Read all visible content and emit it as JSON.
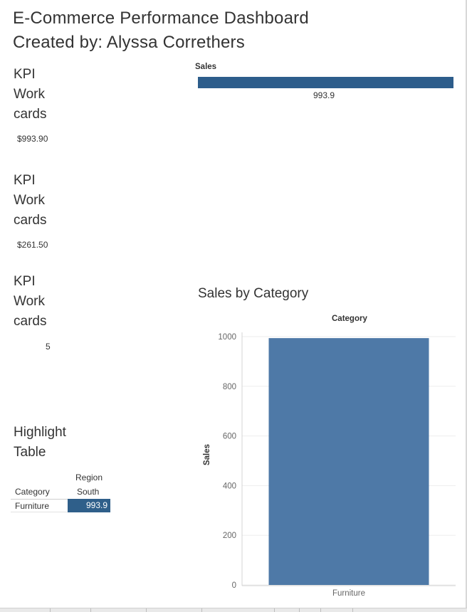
{
  "dashboard": {
    "title": "E-Commerce Performance Dashboard",
    "subtitle": "Created by: Alyssa Correthers"
  },
  "kpis": [
    {
      "title": [
        "KPI",
        "Work",
        "cards"
      ],
      "value": "$993.90"
    },
    {
      "title": [
        "KPI",
        "Work",
        "cards"
      ],
      "value": "$261.50"
    },
    {
      "title": [
        "KPI",
        "Work",
        "cards"
      ],
      "value": "5"
    }
  ],
  "highlight_table": {
    "title": [
      "Highlight",
      "Table"
    ],
    "column_group_header": "Region",
    "column_header": "South",
    "row_header": "Category",
    "rows": [
      {
        "label": "Furniture",
        "value": "993.9"
      }
    ],
    "colors": {
      "cell": "#2f5f8a",
      "cell_text": "#ffffff"
    }
  },
  "sales_bar": {
    "header": "Sales",
    "value_label": "993.9",
    "color": "#2d5d8b"
  },
  "chart_title": "Sales by Category",
  "chart_data": {
    "type": "bar",
    "title": "Category",
    "xlabel": "",
    "ylabel": "Sales",
    "categories": [
      "Furniture"
    ],
    "values": [
      993.9
    ],
    "ylim": [
      0,
      1000
    ],
    "yticks": [
      0,
      200,
      400,
      600,
      800,
      1000
    ],
    "grid": true,
    "color": "#4e79a7"
  }
}
